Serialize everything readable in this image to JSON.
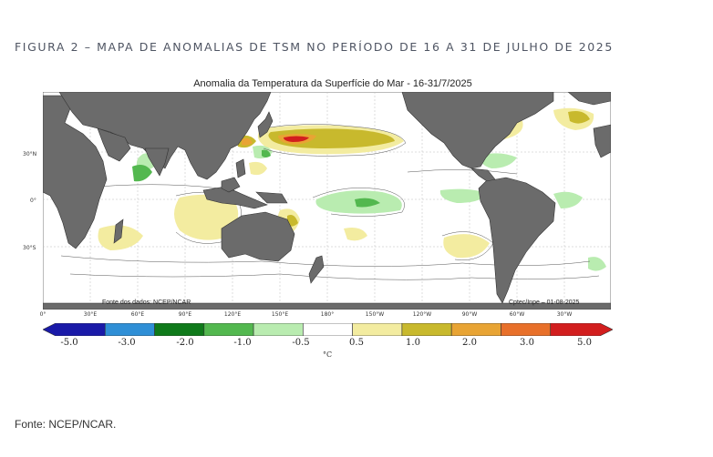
{
  "figure": {
    "title": "FIGURA 2 – MAPA DE ANOMALIAS DE TSM NO PERÍODO DE 16 A 31 DE JULHO DE 2025",
    "source": "Fonte: NCEP/NCAR."
  },
  "map": {
    "title": "Anomalia da Temperatura da Superfície do Mar - 16-31/7/2025",
    "credit_left": "Fonte dos dados: NCEP/NCAR",
    "credit_right": "Cptec/Inpe – 01-08-2025",
    "lat_labels": [
      "30°N",
      "0°",
      "30°S"
    ],
    "lon_labels": [
      "0°",
      "30°E",
      "60°E",
      "90°E",
      "120°E",
      "150°E",
      "180°",
      "150°W",
      "120°W",
      "90°W",
      "60°W",
      "30°W"
    ],
    "land_color": "#6b6b6b",
    "ocean_color": "#ffffff"
  },
  "legend": {
    "unit": "°C",
    "labels": [
      "-5.0",
      "-3.0",
      "-2.0",
      "-1.0",
      "-0.5",
      "0.5",
      "1.0",
      "2.0",
      "3.0",
      "5.0"
    ],
    "colors": [
      "#1a1aa8",
      "#2f8fd6",
      "#0f7a1a",
      "#53b84f",
      "#b9ecb0",
      "#ffffff",
      "#f3eca0",
      "#c8b92d",
      "#e8a434",
      "#e8702a",
      "#d21e1e"
    ]
  }
}
